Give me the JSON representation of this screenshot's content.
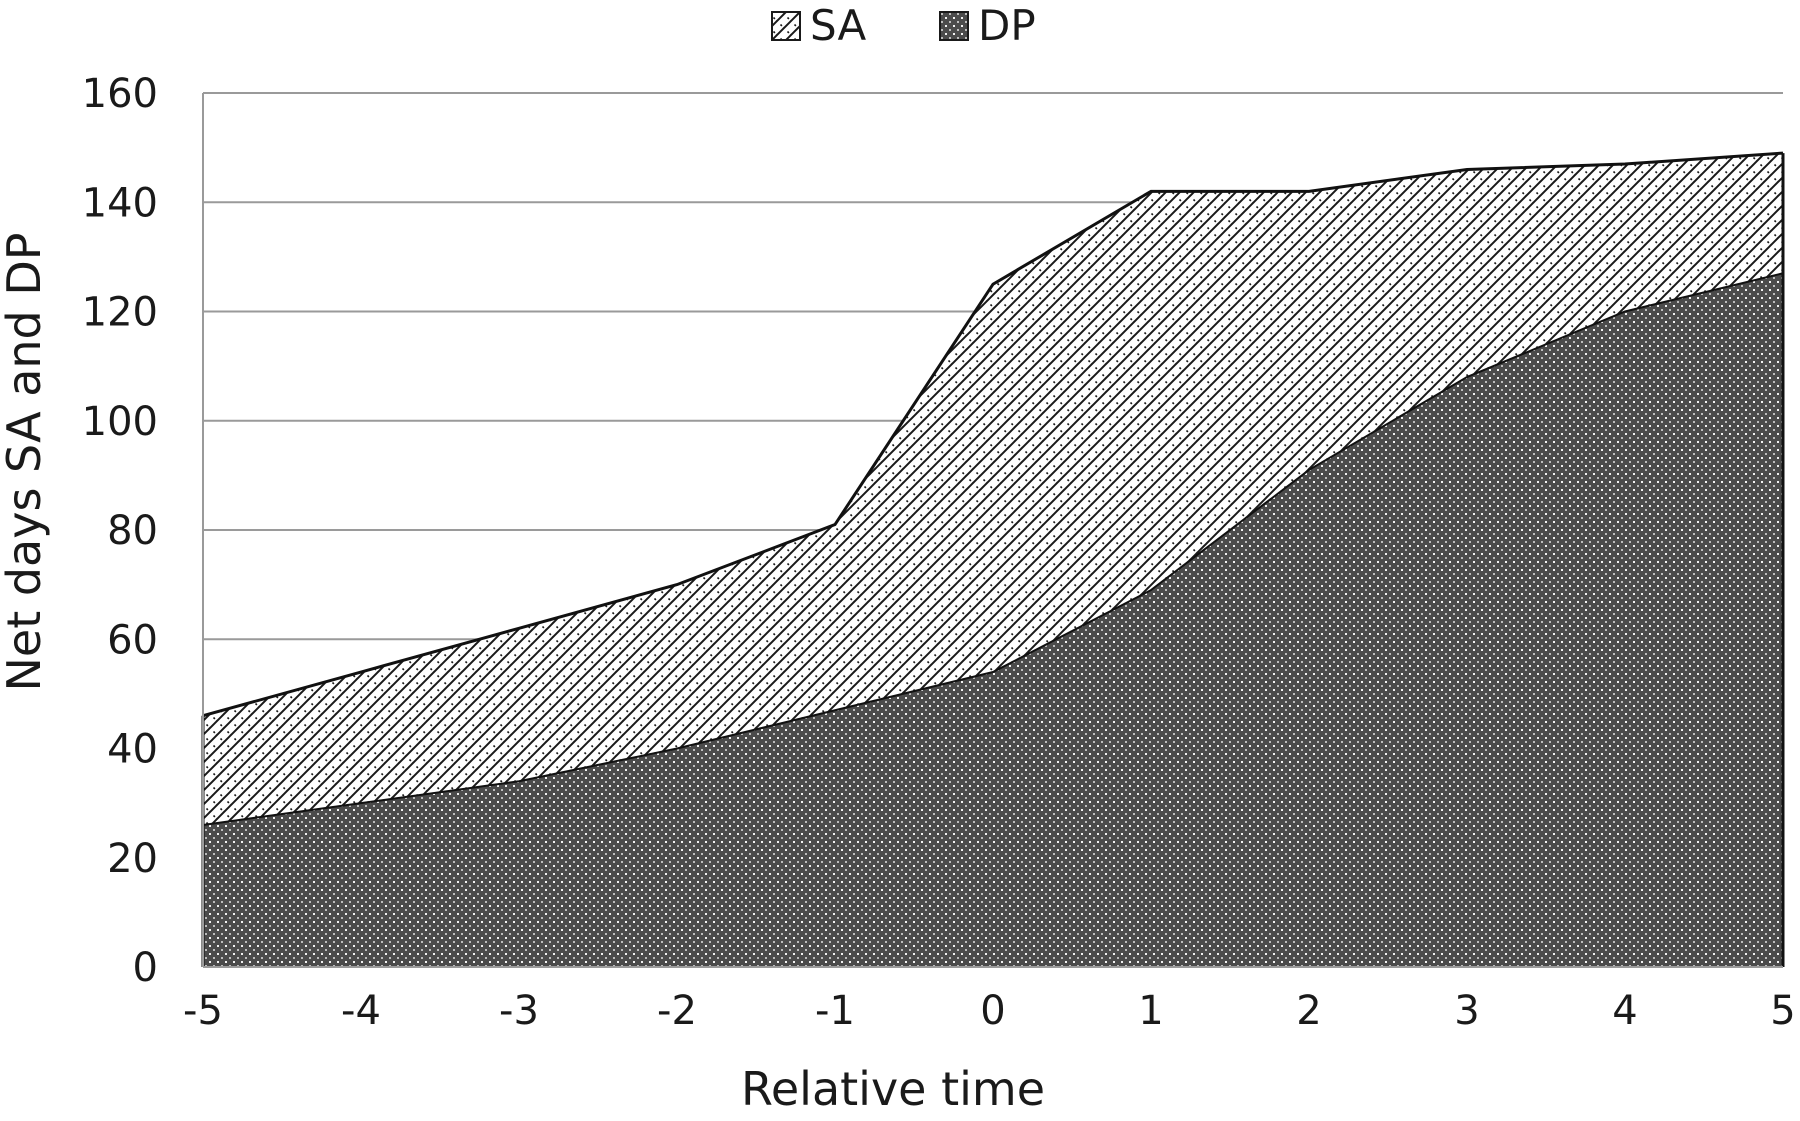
{
  "chart_data": {
    "type": "area",
    "stacked": true,
    "xlabel": "Relative time",
    "ylabel": "Net days SA and DP",
    "x": [
      -5,
      -4,
      -3,
      -2,
      -1,
      0,
      1,
      2,
      3,
      4,
      5
    ],
    "series": [
      {
        "name": "DP",
        "values": [
          26,
          30,
          34,
          40,
          47,
          54,
          69,
          91,
          108,
          120,
          127
        ],
        "pattern": "dense-dots",
        "color": "#4a4a4a"
      },
      {
        "name": "SA",
        "values": [
          20,
          24,
          28,
          30,
          34,
          71,
          73,
          51,
          38,
          27,
          22
        ],
        "pattern": "diagonal-crosshatch",
        "color": "#ffffff"
      }
    ],
    "xlim": [
      -5,
      5
    ],
    "ylim": [
      0,
      160
    ],
    "yticks": [
      0,
      20,
      40,
      60,
      80,
      100,
      120,
      140,
      160
    ],
    "xticks": [
      -5,
      -4,
      -3,
      -2,
      -1,
      0,
      1,
      2,
      3,
      4,
      5
    ],
    "grid": "horizontal",
    "legend": {
      "position": "top",
      "order": [
        "SA",
        "DP"
      ]
    }
  }
}
